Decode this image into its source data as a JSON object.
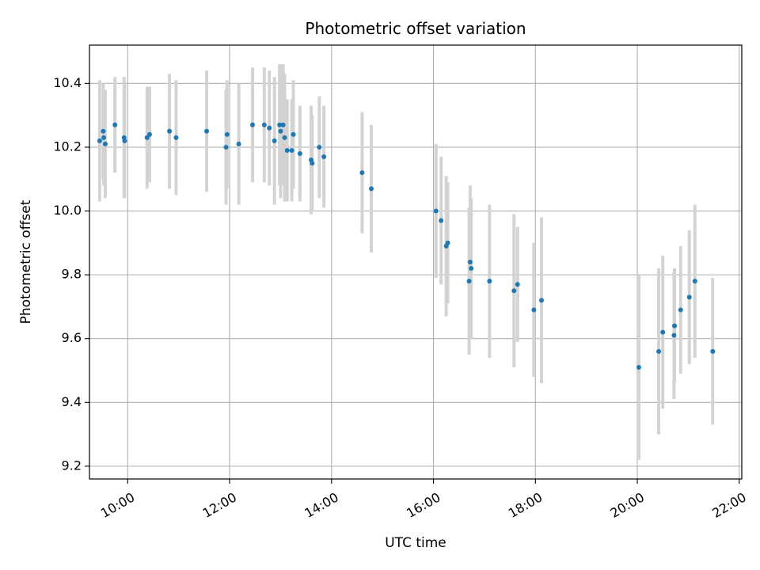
{
  "chart_data": {
    "type": "scatter",
    "title": "Photometric offset variation",
    "xlabel": "UTC time",
    "ylabel": "Photometric offset",
    "grid": true,
    "legend": "none",
    "xlim": [
      9.25,
      22.05
    ],
    "ylim": [
      9.16,
      10.52
    ],
    "x_unit": "hours",
    "xticks": [
      {
        "value": 10,
        "label": "10:00"
      },
      {
        "value": 12,
        "label": "12:00"
      },
      {
        "value": 14,
        "label": "14:00"
      },
      {
        "value": 16,
        "label": "16:00"
      },
      {
        "value": 18,
        "label": "18:00"
      },
      {
        "value": 20,
        "label": "20:00"
      },
      {
        "value": 22,
        "label": "22:00"
      }
    ],
    "yticks": [
      {
        "value": 9.2,
        "label": "9.2"
      },
      {
        "value": 9.4,
        "label": "9.4"
      },
      {
        "value": 9.6,
        "label": "9.6"
      },
      {
        "value": 9.8,
        "label": "9.8"
      },
      {
        "value": 10.0,
        "label": "10.0"
      },
      {
        "value": 10.2,
        "label": "10.2"
      },
      {
        "value": 10.4,
        "label": "10.4"
      }
    ],
    "colors": {
      "marker": "#1f77b4",
      "errorbar": "#d3d3d3",
      "grid": "#b0b0b0"
    },
    "series": [
      {
        "name": "offset",
        "x": [
          9.45,
          9.52,
          9.53,
          9.56,
          9.75,
          9.93,
          9.94,
          10.38,
          10.43,
          10.82,
          10.95,
          11.55,
          11.93,
          11.95,
          12.18,
          12.45,
          12.68,
          12.78,
          12.88,
          12.98,
          13.0,
          13.05,
          13.08,
          13.13,
          13.22,
          13.25,
          13.38,
          13.6,
          13.62,
          13.76,
          13.85,
          14.6,
          14.78,
          16.05,
          16.15,
          16.25,
          16.28,
          16.7,
          16.72,
          16.74,
          17.1,
          17.58,
          17.65,
          17.97,
          18.12,
          20.03,
          20.42,
          20.5,
          20.72,
          20.73,
          20.85,
          21.02,
          21.13,
          21.48
        ],
        "y": [
          10.22,
          10.25,
          10.23,
          10.21,
          10.27,
          10.23,
          10.22,
          10.23,
          10.24,
          10.25,
          10.23,
          10.25,
          10.2,
          10.24,
          10.21,
          10.27,
          10.27,
          10.26,
          10.22,
          10.27,
          10.25,
          10.27,
          10.23,
          10.19,
          10.19,
          10.24,
          10.18,
          10.16,
          10.15,
          10.2,
          10.17,
          10.12,
          10.07,
          10.0,
          9.97,
          9.89,
          9.9,
          9.78,
          9.84,
          9.82,
          9.78,
          9.75,
          9.77,
          9.69,
          9.72,
          9.51,
          9.56,
          9.62,
          9.61,
          9.64,
          9.69,
          9.73,
          9.78,
          9.56
        ],
        "err": [
          0.19,
          0.15,
          0.15,
          0.17,
          0.15,
          0.19,
          0.18,
          0.16,
          0.15,
          0.18,
          0.18,
          0.19,
          0.18,
          0.17,
          0.19,
          0.18,
          0.18,
          0.18,
          0.2,
          0.19,
          0.21,
          0.19,
          0.2,
          0.16,
          0.16,
          0.17,
          0.15,
          0.17,
          0.15,
          0.16,
          0.16,
          0.19,
          0.2,
          0.21,
          0.2,
          0.22,
          0.19,
          0.23,
          0.24,
          0.22,
          0.24,
          0.24,
          0.18,
          0.21,
          0.26,
          0.29,
          0.26,
          0.24,
          0.2,
          0.18,
          0.2,
          0.21,
          0.24,
          0.23
        ]
      }
    ]
  }
}
